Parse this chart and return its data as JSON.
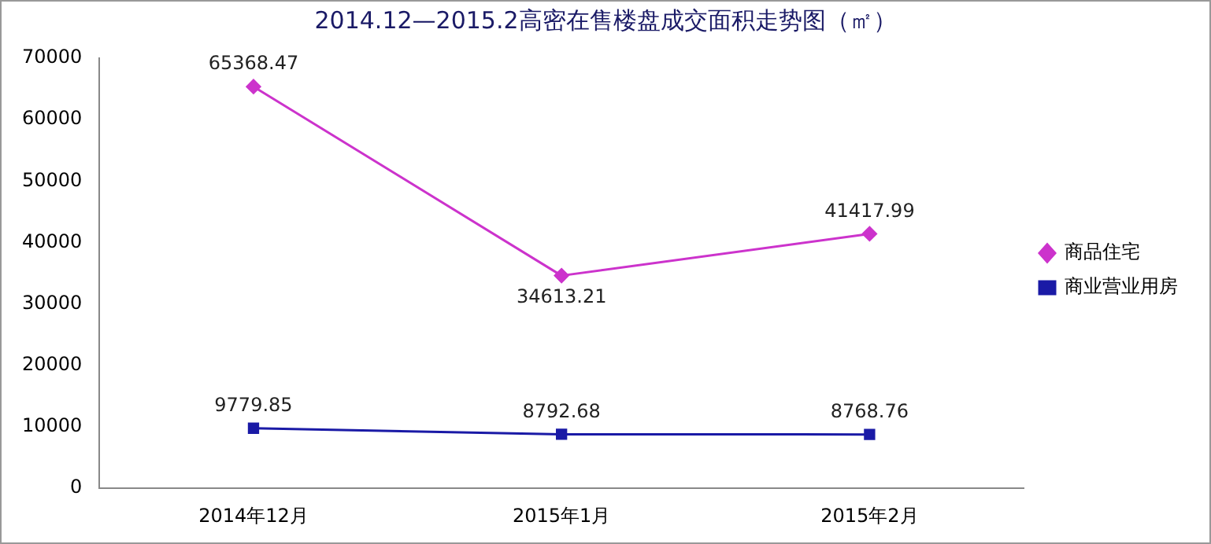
{
  "chart_data": {
    "type": "line",
    "title": "2014.12—2015.2高密在售楼盘成交面积走势图（㎡）",
    "categories": [
      "2014年12月",
      "2015年1月",
      "2015年2月"
    ],
    "series": [
      {
        "name": "商品住宅",
        "color": "#cc33cc",
        "values": [
          65368.47,
          34613.21,
          41417.99
        ],
        "marker": "diamond"
      },
      {
        "name": "商业营业用房",
        "color": "#1a1aa6",
        "values": [
          9779.85,
          8792.68,
          8768.76
        ],
        "marker": "square"
      }
    ],
    "ylim": [
      0,
      70000
    ],
    "yticks": [
      0,
      10000,
      20000,
      30000,
      40000,
      50000,
      60000,
      70000
    ],
    "grid": false,
    "legend": "right",
    "data_labels": true,
    "line_style": "solid"
  }
}
